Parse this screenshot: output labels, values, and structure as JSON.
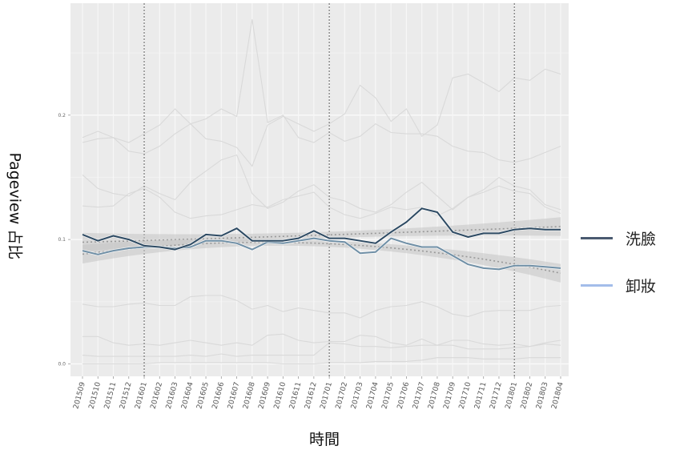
{
  "chart_data": {
    "type": "line",
    "title": "",
    "xlabel": "時間",
    "ylabel": "Pageview 占比",
    "ylim": [
      -0.01,
      0.29
    ],
    "yticks": [
      "0.0",
      "0.1",
      "0.2"
    ],
    "grid": true,
    "legend_position": "right",
    "reference_lines_x": [
      "201601",
      "201701",
      "201801"
    ],
    "x": [
      "201509",
      "201510",
      "201511",
      "201512",
      "201601",
      "201602",
      "201603",
      "201604",
      "201605",
      "201606",
      "201607",
      "201608",
      "201609",
      "201610",
      "201611",
      "201612",
      "201701",
      "201702",
      "201703",
      "201704",
      "201705",
      "201706",
      "201707",
      "201708",
      "201709",
      "201710",
      "201711",
      "201712",
      "201801",
      "201802",
      "201803",
      "201804"
    ],
    "series": [
      {
        "name": "洗臉",
        "color": "#2d4a63",
        "legend_color": "#4a5a70",
        "smooth_trend": true,
        "values": [
          0.104,
          0.099,
          0.103,
          0.1,
          0.095,
          0.094,
          0.092,
          0.096,
          0.104,
          0.103,
          0.109,
          0.099,
          0.099,
          0.099,
          0.101,
          0.107,
          0.101,
          0.101,
          0.099,
          0.097,
          0.106,
          0.114,
          0.125,
          0.122,
          0.106,
          0.102,
          0.105,
          0.105,
          0.108,
          0.109,
          0.108,
          0.108
        ]
      },
      {
        "name": "卸妝",
        "color": "#6f8fa6",
        "legend_color": "#a3bdea",
        "smooth_trend": true,
        "values": [
          0.091,
          0.088,
          0.091,
          0.093,
          0.094,
          0.094,
          0.093,
          0.094,
          0.099,
          0.099,
          0.097,
          0.092,
          0.098,
          0.097,
          0.099,
          0.101,
          0.099,
          0.098,
          0.089,
          0.09,
          0.101,
          0.097,
          0.094,
          0.094,
          0.087,
          0.08,
          0.077,
          0.076,
          0.079,
          0.079,
          0.078,
          0.077
        ]
      }
    ],
    "background_series": [
      {
        "color": "#d9d9d9",
        "values": [
          0.182,
          0.187,
          0.182,
          0.171,
          0.169,
          0.175,
          0.185,
          0.193,
          0.197,
          0.205,
          0.199,
          0.277,
          0.194,
          0.2,
          0.182,
          0.178,
          0.186,
          0.179,
          0.183,
          0.193,
          0.186,
          0.185,
          0.185,
          0.183,
          0.175,
          0.171,
          0.17,
          0.164,
          0.162,
          0.165,
          0.17,
          0.175
        ]
      },
      {
        "color": "#d9d9d9",
        "values": [
          0.178,
          0.181,
          0.182,
          0.178,
          0.185,
          0.192,
          0.205,
          0.193,
          0.181,
          0.179,
          0.174,
          0.159,
          0.192,
          0.199,
          0.193,
          0.187,
          0.193,
          0.201,
          0.224,
          0.214,
          0.195,
          0.205,
          0.183,
          0.192,
          0.23,
          0.233,
          0.226,
          0.219,
          0.23,
          0.228,
          0.237,
          0.233
        ]
      },
      {
        "color": "#d9d9d9",
        "values": [
          0.152,
          0.141,
          0.137,
          0.135,
          0.143,
          0.137,
          0.132,
          0.146,
          0.155,
          0.164,
          0.168,
          0.137,
          0.125,
          0.13,
          0.139,
          0.144,
          0.134,
          0.131,
          0.125,
          0.122,
          0.128,
          0.138,
          0.146,
          0.135,
          0.124,
          0.134,
          0.14,
          0.15,
          0.143,
          0.14,
          0.128,
          0.124
        ]
      },
      {
        "color": "#d9d9d9",
        "values": [
          0.127,
          0.126,
          0.127,
          0.137,
          0.141,
          0.134,
          0.122,
          0.117,
          0.119,
          0.12,
          0.124,
          0.128,
          0.126,
          0.132,
          0.135,
          0.138,
          0.126,
          0.12,
          0.117,
          0.121,
          0.126,
          0.124,
          0.126,
          0.119,
          0.125,
          0.134,
          0.138,
          0.143,
          0.139,
          0.137,
          0.126,
          0.121
        ]
      },
      {
        "color": "#d9d9d9",
        "values": [
          0.048,
          0.046,
          0.046,
          0.048,
          0.049,
          0.047,
          0.047,
          0.054,
          0.055,
          0.055,
          0.051,
          0.044,
          0.047,
          0.042,
          0.045,
          0.043,
          0.041,
          0.041,
          0.037,
          0.043,
          0.046,
          0.047,
          0.05,
          0.046,
          0.04,
          0.038,
          0.042,
          0.043,
          0.043,
          0.043,
          0.046,
          0.047
        ]
      },
      {
        "color": "#d9d9d9",
        "values": [
          0.022,
          0.022,
          0.017,
          0.015,
          0.016,
          0.015,
          0.017,
          0.019,
          0.017,
          0.015,
          0.017,
          0.015,
          0.023,
          0.024,
          0.019,
          0.017,
          0.018,
          0.018,
          0.023,
          0.022,
          0.017,
          0.015,
          0.02,
          0.015,
          0.019,
          0.019,
          0.016,
          0.015,
          0.016,
          0.014,
          0.017,
          0.019
        ]
      },
      {
        "color": "#d9d9d9",
        "values": [
          0.007,
          0.006,
          0.006,
          0.006,
          0.006,
          0.006,
          0.006,
          0.007,
          0.006,
          0.008,
          0.006,
          0.007,
          0.007,
          0.007,
          0.007,
          0.007,
          0.017,
          0.016,
          0.014,
          0.014,
          0.013,
          0.014,
          0.015,
          0.015,
          0.015,
          0.012,
          0.012,
          0.012,
          0.013,
          0.014,
          0.016,
          0.015
        ]
      },
      {
        "color": "#d9d9d9",
        "values": [
          0.0,
          0.0,
          0.0,
          0.0,
          0.0,
          0.001,
          0.001,
          0.001,
          0.001,
          0.001,
          0.001,
          0.001,
          0.001,
          0.0,
          0.0,
          0.0,
          0.001,
          0.001,
          0.001,
          0.002,
          0.002,
          0.002,
          0.003,
          0.005,
          0.005,
          0.005,
          0.004,
          0.004,
          0.004,
          0.005,
          0.005,
          0.005
        ]
      }
    ]
  }
}
